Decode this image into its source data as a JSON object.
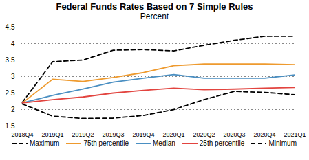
{
  "chart_data": {
    "type": "line",
    "title": "Federal Funds Rates Based on 7 Simple Rules",
    "subtitle": "Percent",
    "categories": [
      "2018Q4",
      "2019Q1",
      "2019Q2",
      "2019Q3",
      "2019Q4",
      "2020Q1",
      "2020Q2",
      "2020Q3",
      "2020Q4",
      "2021Q1"
    ],
    "series": [
      {
        "name": "Maximum",
        "color": "#000000",
        "line_style": "dashed",
        "values": [
          2.22,
          3.45,
          3.5,
          3.8,
          3.82,
          3.78,
          3.95,
          4.1,
          4.22,
          4.22
        ]
      },
      {
        "name": "75th percentile",
        "color": "#ee9a2e",
        "line_style": "solid",
        "values": [
          2.2,
          2.92,
          2.85,
          2.97,
          3.12,
          3.33,
          3.38,
          3.38,
          3.38,
          3.36
        ]
      },
      {
        "name": "Median",
        "color": "#4a8fc2",
        "line_style": "solid",
        "values": [
          2.2,
          2.43,
          2.62,
          2.83,
          2.95,
          3.06,
          2.95,
          2.95,
          2.95,
          3.05
        ]
      },
      {
        "name": "25th percentile",
        "color": "#e2443f",
        "line_style": "solid",
        "values": [
          2.2,
          2.3,
          2.38,
          2.5,
          2.58,
          2.65,
          2.6,
          2.62,
          2.65,
          2.67
        ]
      },
      {
        "name": "Minimum",
        "color": "#000000",
        "line_style": "dashed",
        "values": [
          2.17,
          1.8,
          1.73,
          1.74,
          1.82,
          2.0,
          2.3,
          2.55,
          2.52,
          2.45
        ]
      }
    ],
    "ylim": [
      1.5,
      4.5
    ],
    "yticks": [
      1.5,
      2,
      2.5,
      3,
      3.5,
      4,
      4.5
    ],
    "grid": true,
    "legend": "bottom"
  }
}
